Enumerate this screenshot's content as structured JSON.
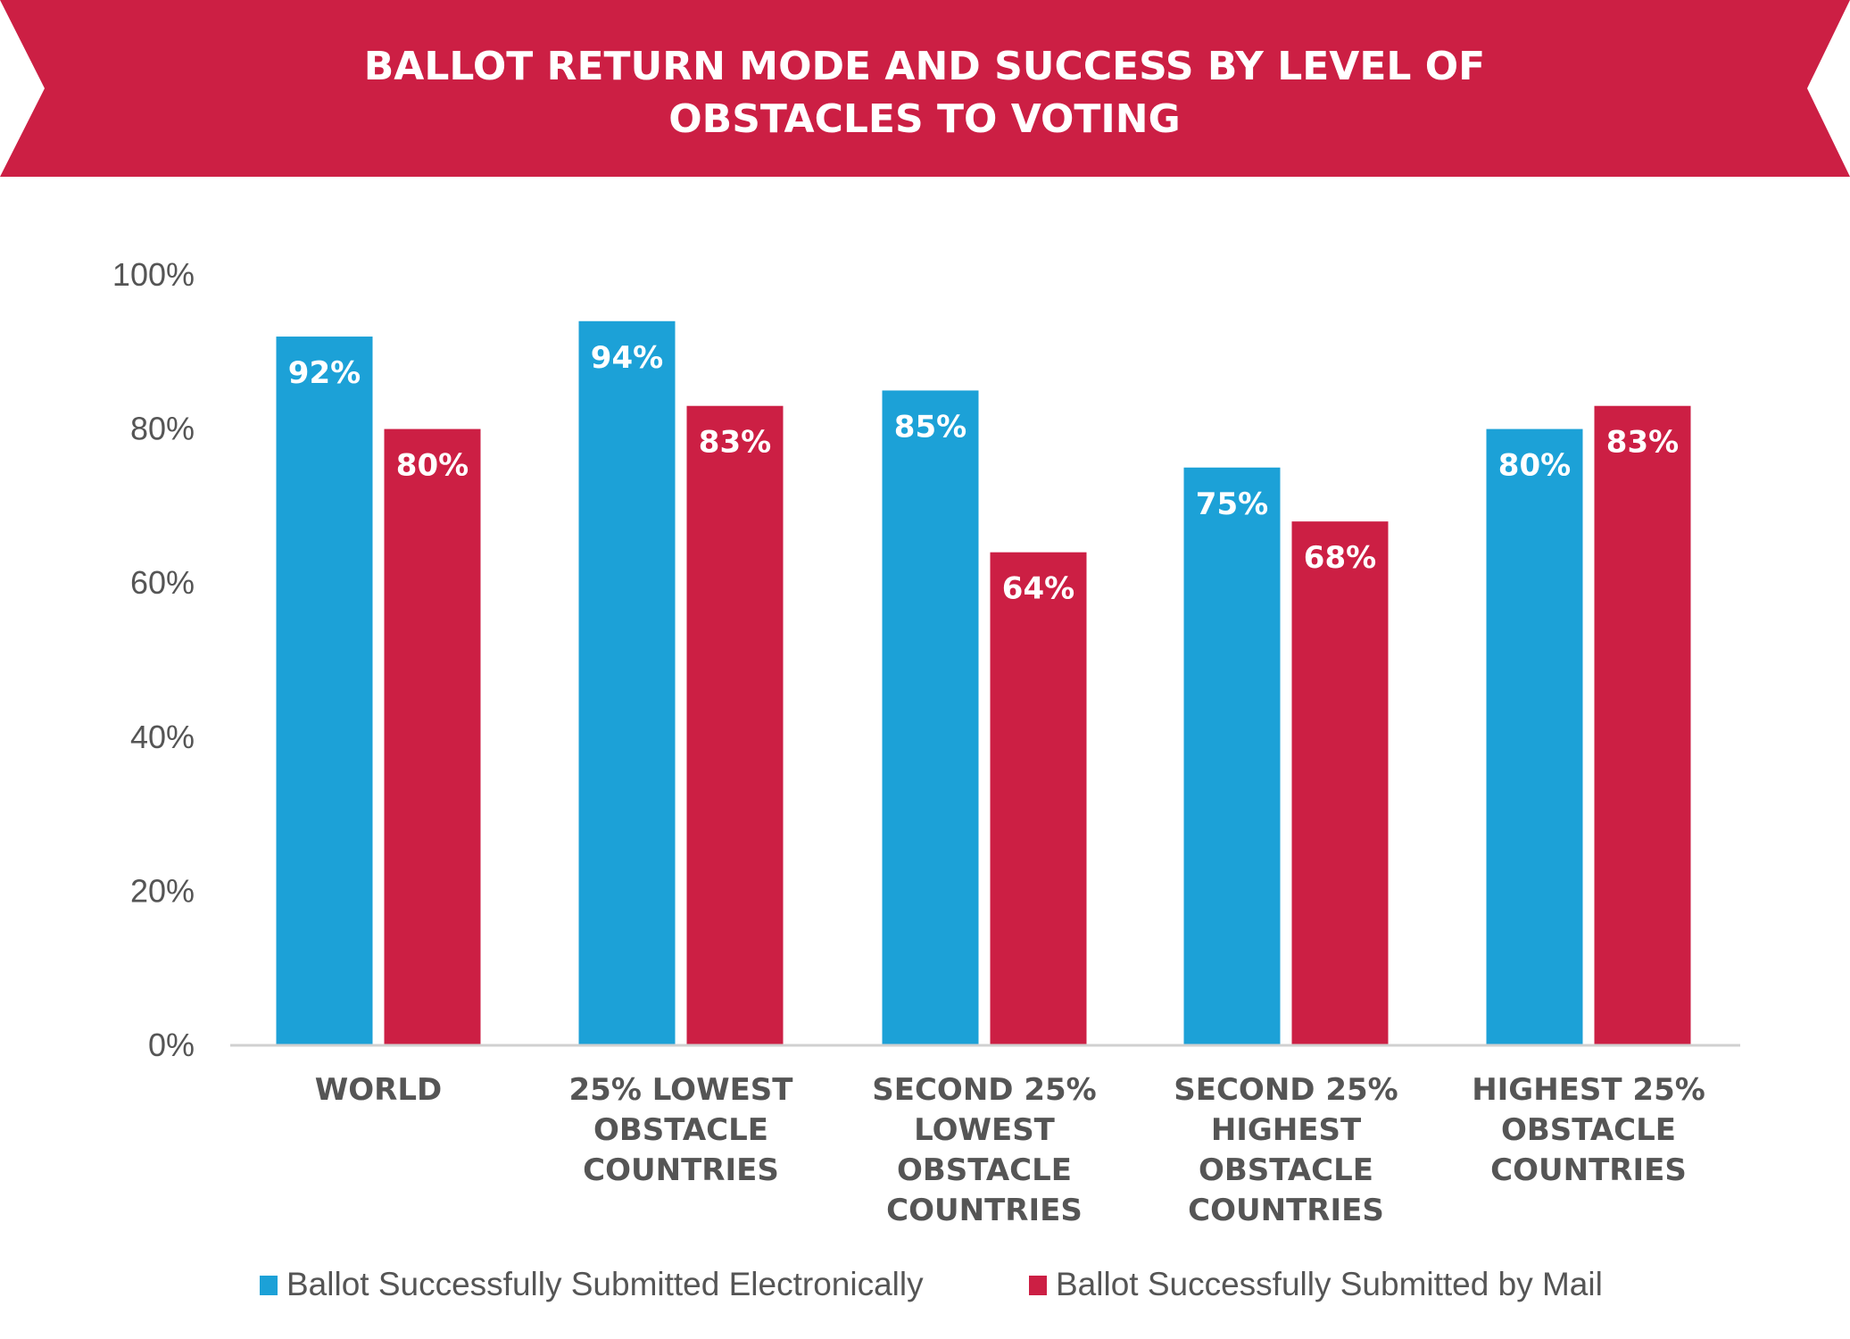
{
  "chart_data": {
    "type": "bar",
    "title": "BALLOT RETURN MODE AND SUCCESS BY LEVEL OF OBSTACLES TO VOTING",
    "title_lines": [
      "BALLOT RETURN MODE AND SUCCESS BY LEVEL OF",
      "OBSTACLES TO VOTING"
    ],
    "categories": [
      [
        "WORLD"
      ],
      [
        "25% LOWEST",
        "OBSTACLE",
        "COUNTRIES"
      ],
      [
        "SECOND 25%",
        "LOWEST",
        "OBSTACLE",
        "COUNTRIES"
      ],
      [
        "SECOND 25%",
        "HIGHEST",
        "OBSTACLE",
        "COUNTRIES"
      ],
      [
        "HIGHEST 25%",
        "OBSTACLE",
        "COUNTRIES"
      ]
    ],
    "series": [
      {
        "name": "Ballot Successfully Submitted Electronically",
        "color": "#1CA1D7",
        "values": [
          92,
          94,
          85,
          75,
          80
        ],
        "labels": [
          "92%",
          "94%",
          "85%",
          "75%",
          "80%"
        ]
      },
      {
        "name": "Ballot Successfully Submitted by Mail",
        "color": "#CC1F44",
        "values": [
          80,
          83,
          64,
          68,
          83
        ],
        "labels": [
          "80%",
          "83%",
          "64%",
          "68%",
          "83%"
        ]
      }
    ],
    "yticks": [
      "0%",
      "20%",
      "40%",
      "60%",
      "80%",
      "100%"
    ],
    "ylim": [
      0,
      100
    ],
    "grid": false,
    "legend_position": "bottom",
    "banner_color": "#CC1F44"
  }
}
